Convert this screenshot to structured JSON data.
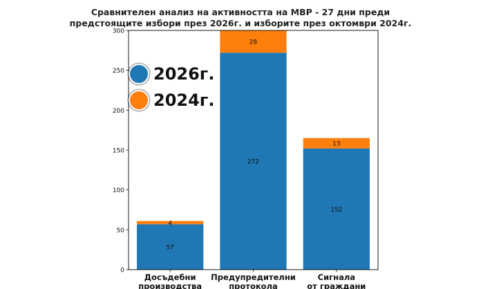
{
  "chart_data": {
    "type": "bar",
    "stacked": true,
    "title_line1": "Сравнителен анализ на активността на МВР - 27 дни преди",
    "title_line2": "предстоящите избори през 2026г. и изборите през октомври 2024г.",
    "categories": [
      [
        "Досъдебни",
        "производства"
      ],
      [
        "Предупредителни",
        "протокола"
      ],
      [
        "Сигнала",
        "от граждани"
      ]
    ],
    "series": [
      {
        "name": "2026г.",
        "color": "#1f77b4",
        "values": [
          57,
          272,
          152
        ]
      },
      {
        "name": "2024г.",
        "color": "#ff7f0e",
        "values": [
          4,
          28,
          13
        ]
      }
    ],
    "ylim": [
      0,
      300
    ],
    "yticks": [
      0,
      50,
      100,
      150,
      200,
      250,
      300
    ],
    "legend_position": "upper-left",
    "grid": false
  }
}
